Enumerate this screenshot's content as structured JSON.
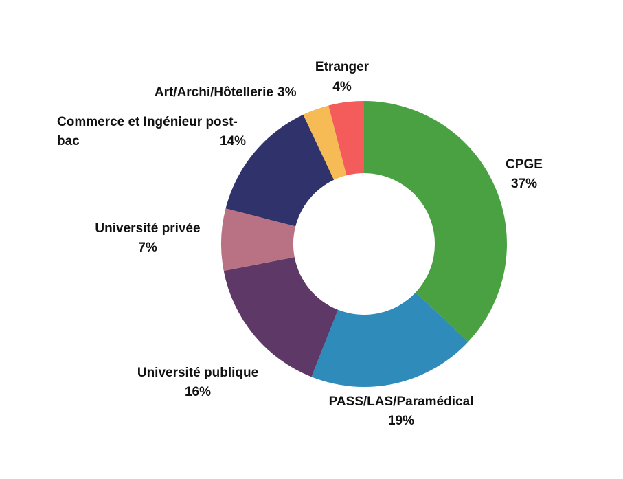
{
  "chart_data": {
    "type": "donut",
    "categories": [
      "CPGE",
      "PASS/LAS/Paramédical",
      "Université publique",
      "Université privée",
      "Commerce et Ingénieur post-bac",
      "Art/Archi/Hôtellerie",
      "Etranger"
    ],
    "values": [
      37,
      19,
      16,
      7,
      14,
      3,
      4
    ],
    "value_labels": [
      "37%",
      "19%",
      "16%",
      "7%",
      "14%",
      "3%",
      "4%"
    ],
    "colors": [
      "#4aa142",
      "#2e8bba",
      "#5e3866",
      "#b87283",
      "#30336b",
      "#f7bb55",
      "#f45b5b"
    ]
  }
}
